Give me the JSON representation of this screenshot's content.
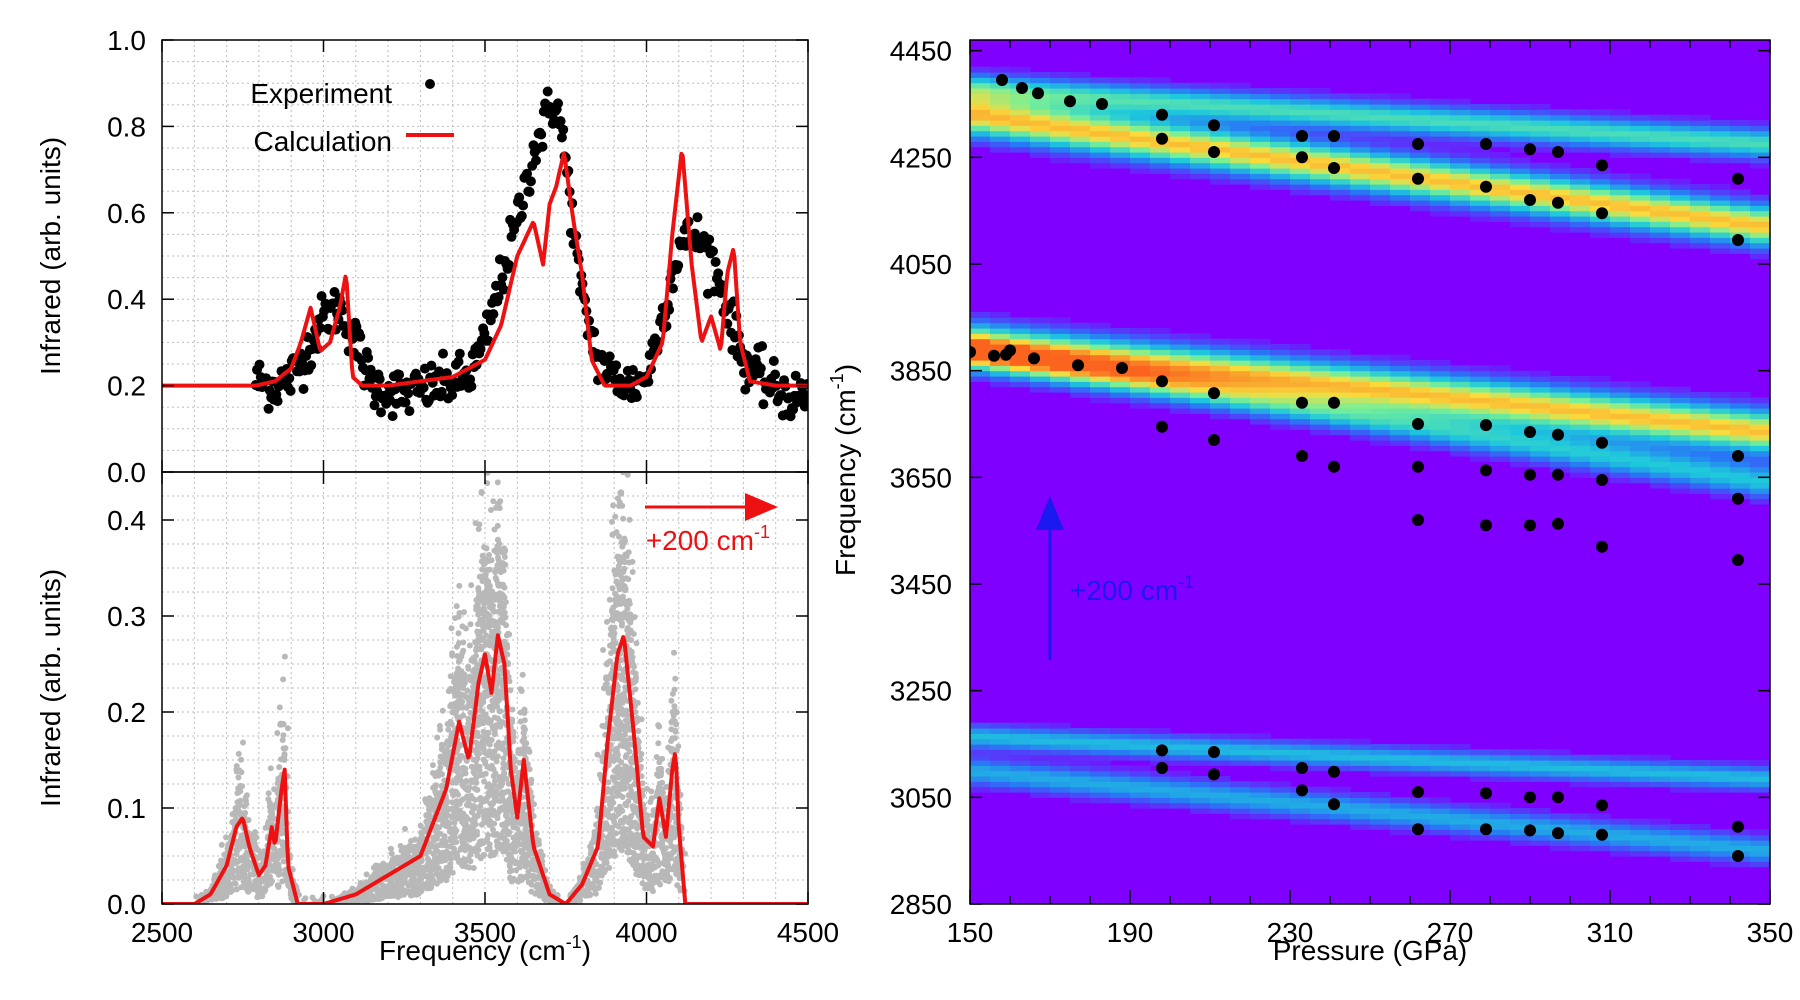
{
  "chart_data": [
    {
      "type": "scatter+line",
      "panel": "top-left",
      "xlim": [
        2500,
        4500
      ],
      "ylim": [
        0.0,
        1.0
      ],
      "xticks": [
        2500,
        3000,
        3500,
        4000,
        4500
      ],
      "yticks": [
        "0.0",
        "0.2",
        "0.4",
        "0.6",
        "0.8",
        "1.0"
      ],
      "ylabel": "Infrared (arb. units)",
      "grid": true,
      "legend": {
        "position": "top-left",
        "entries": [
          "Experiment",
          "Calculation"
        ]
      },
      "series": [
        {
          "name": "Experiment",
          "style": "black dots",
          "note": "noisy spectrum, approx. envelope",
          "x": [
            2800,
            2850,
            2900,
            2950,
            3000,
            3050,
            3100,
            3150,
            3200,
            3250,
            3300,
            3350,
            3400,
            3450,
            3500,
            3550,
            3600,
            3650,
            3700,
            3720,
            3750,
            3800,
            3850,
            3900,
            3950,
            4000,
            4050,
            4100,
            4150,
            4200,
            4250,
            4300,
            4350,
            4400,
            4450,
            4500
          ],
          "y": [
            0.21,
            0.2,
            0.22,
            0.28,
            0.36,
            0.38,
            0.3,
            0.2,
            0.19,
            0.18,
            0.19,
            0.2,
            0.21,
            0.22,
            0.3,
            0.45,
            0.58,
            0.74,
            0.84,
            0.86,
            0.72,
            0.4,
            0.26,
            0.22,
            0.2,
            0.22,
            0.36,
            0.52,
            0.55,
            0.5,
            0.38,
            0.26,
            0.22,
            0.19,
            0.17,
            0.18
          ]
        },
        {
          "name": "Calculation",
          "style": "red line",
          "x": [
            2500,
            2790,
            2850,
            2900,
            2930,
            2960,
            2990,
            3020,
            3050,
            3070,
            3090,
            3120,
            3200,
            3300,
            3400,
            3500,
            3550,
            3600,
            3650,
            3680,
            3700,
            3720,
            3745,
            3770,
            3800,
            3830,
            3870,
            3950,
            4000,
            4050,
            4080,
            4110,
            4140,
            4170,
            4200,
            4230,
            4250,
            4270,
            4290,
            4320,
            4400,
            4500
          ],
          "y": [
            0.2,
            0.2,
            0.21,
            0.24,
            0.3,
            0.38,
            0.28,
            0.3,
            0.38,
            0.46,
            0.22,
            0.2,
            0.2,
            0.21,
            0.22,
            0.26,
            0.34,
            0.5,
            0.58,
            0.48,
            0.62,
            0.66,
            0.74,
            0.6,
            0.46,
            0.26,
            0.2,
            0.2,
            0.22,
            0.3,
            0.55,
            0.75,
            0.48,
            0.3,
            0.36,
            0.28,
            0.46,
            0.52,
            0.3,
            0.21,
            0.2,
            0.2
          ]
        }
      ]
    },
    {
      "type": "scatter+line",
      "panel": "bottom-left",
      "xlim": [
        2500,
        4500
      ],
      "ylim": [
        0.0,
        0.45
      ],
      "xticks": [
        2500,
        3000,
        3500,
        4000,
        4500
      ],
      "yticks": [
        "0.0",
        "0.1",
        "0.2",
        "0.3",
        "0.4"
      ],
      "xlabel": "Frequency (cm",
      "xlabel_sup": "-1",
      "xlabel_end": ")",
      "ylabel": "Infrared (arb. units)",
      "grid": true,
      "annotation": {
        "text": "+200 cm",
        "sup": "-1",
        "color": "#ee1111",
        "arrow": "right",
        "x_from": 3920,
        "x_to": 4250,
        "y": 0.46
      },
      "series": [
        {
          "name": "Calculation (bottom)",
          "style": "red line",
          "x": [
            2500,
            2600,
            2650,
            2700,
            2730,
            2750,
            2770,
            2800,
            2820,
            2840,
            2850,
            2870,
            2880,
            2890,
            2920,
            3000,
            3100,
            3200,
            3300,
            3380,
            3420,
            3450,
            3480,
            3500,
            3520,
            3540,
            3560,
            3580,
            3600,
            3620,
            3650,
            3700,
            3750,
            3800,
            3850,
            3880,
            3910,
            3930,
            3960,
            3990,
            4020,
            4040,
            4060,
            4080,
            4090,
            4100,
            4120,
            4500
          ],
          "y": [
            0.0,
            0.0,
            0.01,
            0.04,
            0.08,
            0.09,
            0.06,
            0.03,
            0.04,
            0.08,
            0.06,
            0.12,
            0.14,
            0.04,
            0.0,
            0.0,
            0.01,
            0.03,
            0.05,
            0.12,
            0.19,
            0.15,
            0.23,
            0.26,
            0.22,
            0.28,
            0.25,
            0.14,
            0.09,
            0.15,
            0.06,
            0.01,
            0.0,
            0.02,
            0.06,
            0.17,
            0.26,
            0.28,
            0.18,
            0.07,
            0.06,
            0.11,
            0.07,
            0.14,
            0.16,
            0.08,
            0.0,
            0.0
          ]
        }
      ]
    },
    {
      "type": "heatmap",
      "panel": "right",
      "xlim": [
        150,
        350
      ],
      "ylim": [
        2850,
        4470
      ],
      "xticks": [
        150,
        190,
        230,
        270,
        310,
        350
      ],
      "yticks": [
        2850,
        3050,
        3250,
        3450,
        3650,
        3850,
        4050,
        4250,
        4450
      ],
      "xlabel": "Pressure (GPa)",
      "ylabel": "Frequency (cm",
      "ylabel_sup": "-1",
      "ylabel_end": ")",
      "annotation": {
        "text": "+200 cm",
        "sup": "-1",
        "color": "#1a1af0",
        "arrow": "up",
        "x": 170,
        "y_from": 3300,
        "y_to": 3620
      },
      "bands": [
        {
          "center_150": 4380,
          "center_350": 4275,
          "width": 28,
          "intensity": 0.55
        },
        {
          "center_150": 4330,
          "center_350": 4120,
          "width": 38,
          "intensity": 0.85
        },
        {
          "center_150": 3900,
          "center_350": 3735,
          "width": 40,
          "intensity": 0.85
        },
        {
          "center_150": 3880,
          "center_350": 3640,
          "width": 30,
          "intensity": 0.45
        },
        {
          "center_150": 3165,
          "center_350": 3085,
          "width": 22,
          "intensity": 0.42
        },
        {
          "center_150": 3100,
          "center_350": 2950,
          "width": 26,
          "intensity": 0.38
        }
      ],
      "points": [
        [
          158,
          4395
        ],
        [
          163,
          4380
        ],
        [
          167,
          4370
        ],
        [
          175,
          4355
        ],
        [
          183,
          4350
        ],
        [
          150,
          3885
        ],
        [
          156,
          3878
        ],
        [
          159,
          3880
        ],
        [
          160,
          3888
        ],
        [
          166,
          3873
        ],
        [
          177,
          3860
        ],
        [
          188,
          3855
        ],
        [
          198,
          4330
        ],
        [
          198,
          4285
        ],
        [
          198,
          3830
        ],
        [
          198,
          3745
        ],
        [
          198,
          3138
        ],
        [
          198,
          3105
        ],
        [
          211,
          4310
        ],
        [
          211,
          4260
        ],
        [
          211,
          3808
        ],
        [
          211,
          3720
        ],
        [
          211,
          3135
        ],
        [
          211,
          3093
        ],
        [
          233,
          4290
        ],
        [
          233,
          4250
        ],
        [
          233,
          3790
        ],
        [
          233,
          3690
        ],
        [
          233,
          3105
        ],
        [
          233,
          3063
        ],
        [
          241,
          4290
        ],
        [
          241,
          4230
        ],
        [
          241,
          3790
        ],
        [
          241,
          3670
        ],
        [
          241,
          3098
        ],
        [
          241,
          3037
        ],
        [
          262,
          4275
        ],
        [
          262,
          4210
        ],
        [
          262,
          3750
        ],
        [
          262,
          3670
        ],
        [
          262,
          3570
        ],
        [
          262,
          3060
        ],
        [
          262,
          2990
        ],
        [
          279,
          4275
        ],
        [
          279,
          4195
        ],
        [
          279,
          3748
        ],
        [
          279,
          3663
        ],
        [
          279,
          3560
        ],
        [
          279,
          3058
        ],
        [
          279,
          2990
        ],
        [
          290,
          4265
        ],
        [
          290,
          4170
        ],
        [
          290,
          3735
        ],
        [
          290,
          3655
        ],
        [
          290,
          3560
        ],
        [
          290,
          3050
        ],
        [
          290,
          2988
        ],
        [
          297,
          4260
        ],
        [
          297,
          4165
        ],
        [
          297,
          3730
        ],
        [
          297,
          3655
        ],
        [
          297,
          3563
        ],
        [
          297,
          3050
        ],
        [
          297,
          2983
        ],
        [
          308,
          4235
        ],
        [
          308,
          4145
        ],
        [
          308,
          3715
        ],
        [
          308,
          3645
        ],
        [
          308,
          3520
        ],
        [
          308,
          3035
        ],
        [
          308,
          2980
        ],
        [
          342,
          4210
        ],
        [
          342,
          4095
        ],
        [
          342,
          3690
        ],
        [
          342,
          3610
        ],
        [
          342,
          3495
        ],
        [
          342,
          2995
        ],
        [
          342,
          2940
        ]
      ]
    }
  ]
}
